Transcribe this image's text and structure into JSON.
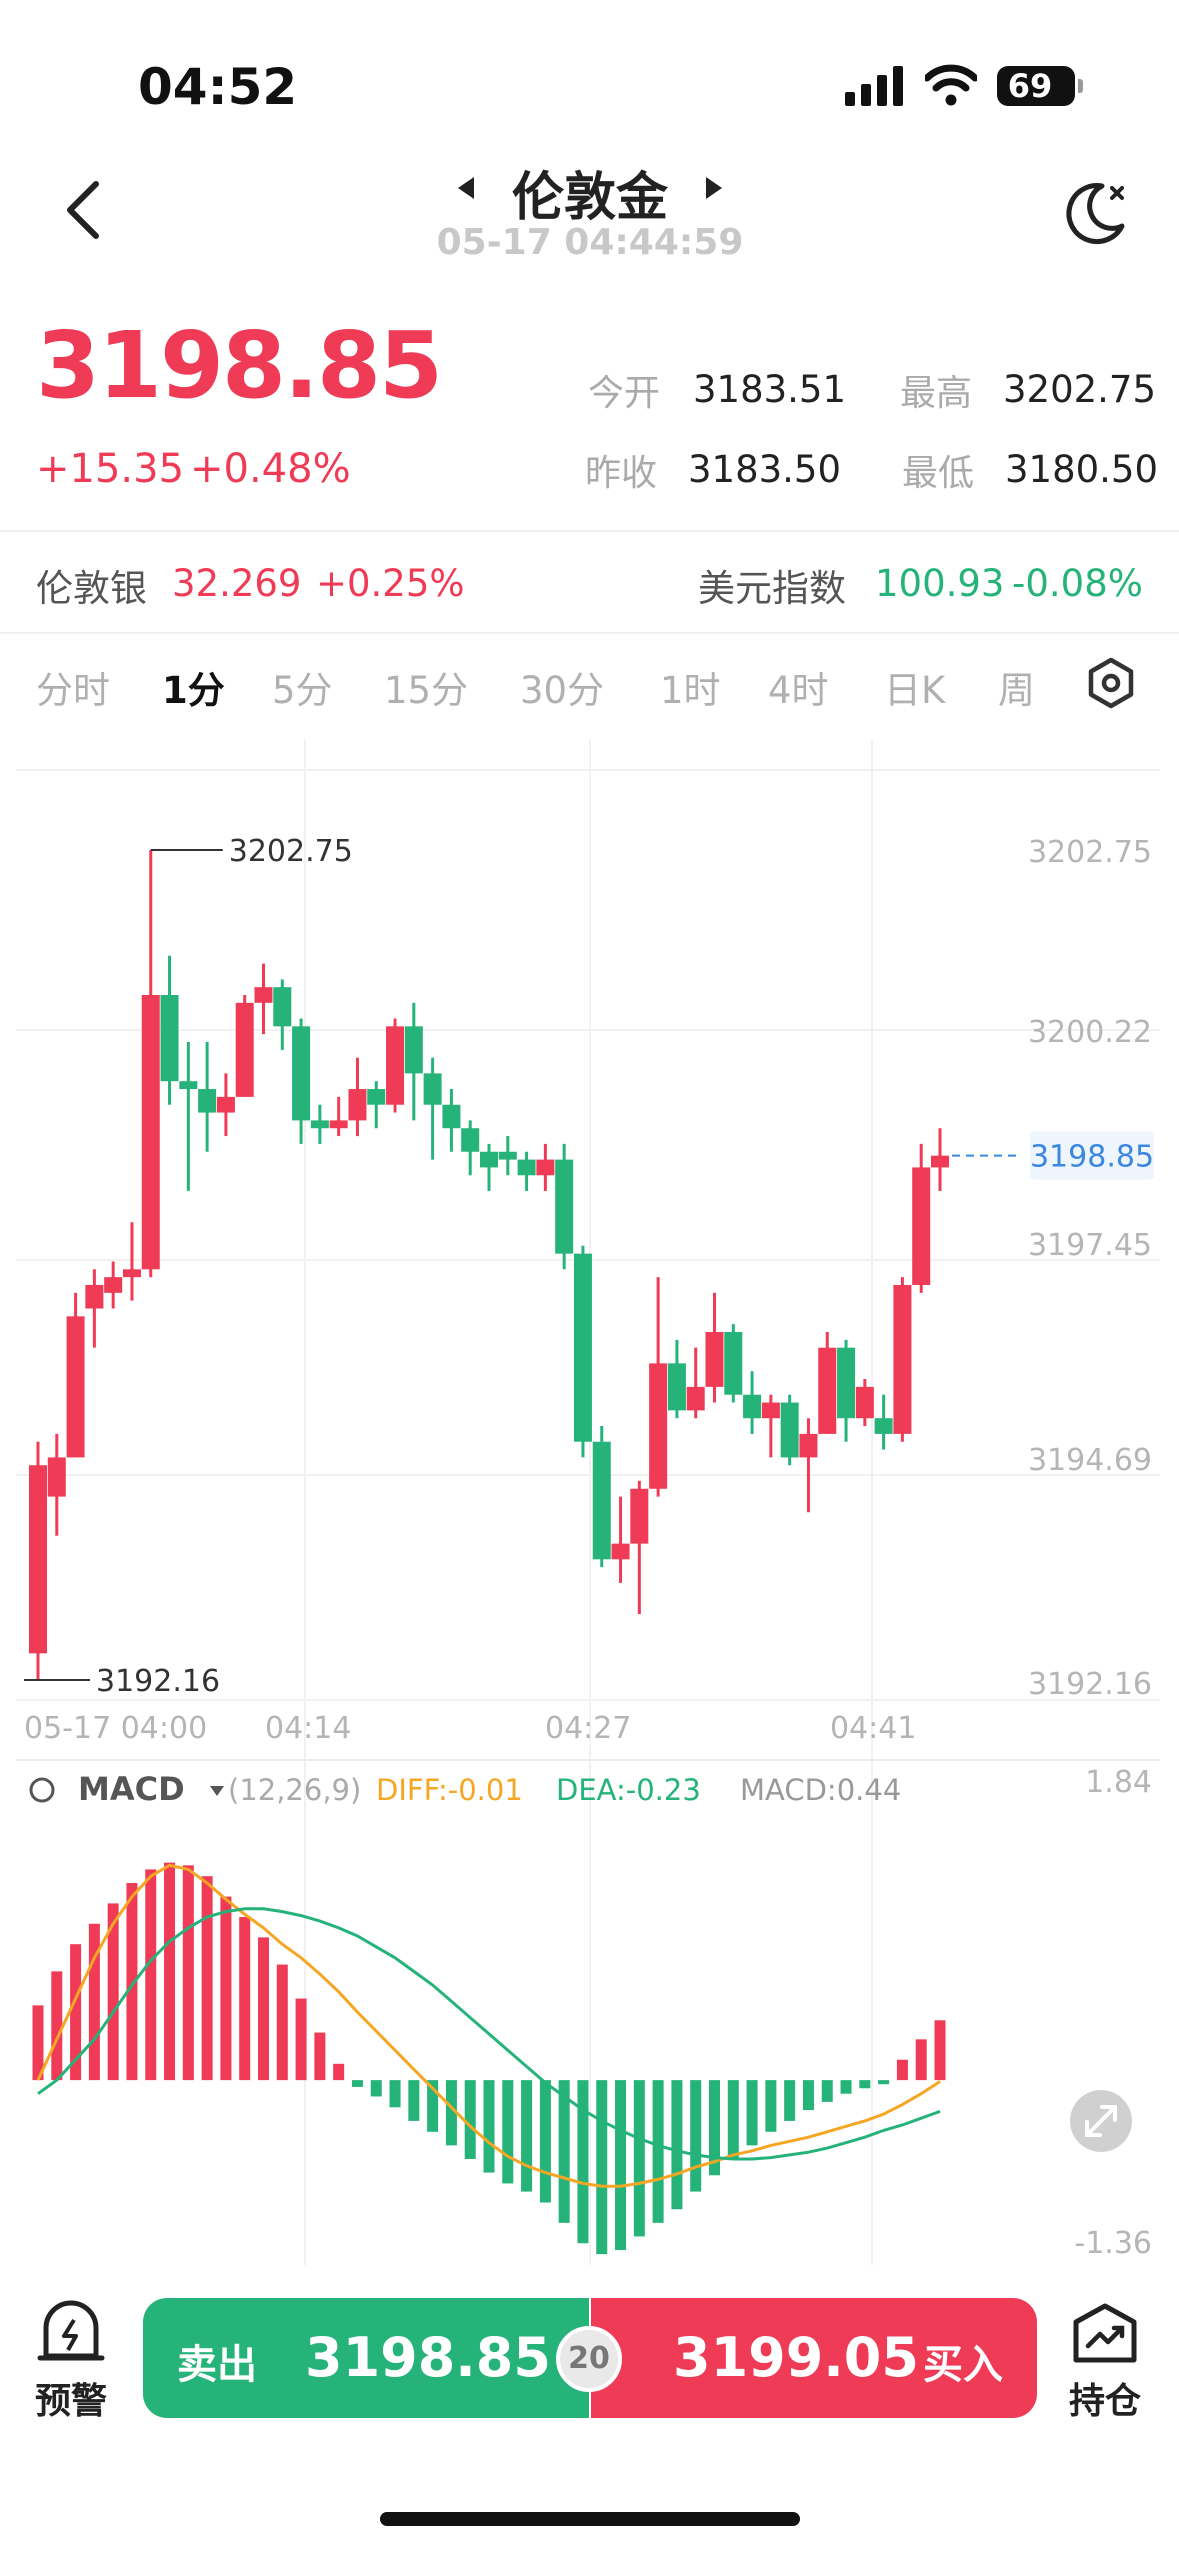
{
  "status_bar": {
    "time": "04:52",
    "battery": "69"
  },
  "header": {
    "title": "伦敦金",
    "timestamp": "05-17 04:44:59"
  },
  "quote": {
    "price": "3198.85",
    "change": "+15.35",
    "change_pct": "+0.48%",
    "open_label": "今开",
    "open": "3183.51",
    "high_label": "最高",
    "high": "3202.75",
    "prev_close_label": "昨收",
    "prev_close": "3183.50",
    "low_label": "最低",
    "low": "3180.50"
  },
  "related": [
    {
      "name": "伦敦银",
      "value": "32.269",
      "pct": "+0.25%"
    },
    {
      "name": "美元指数",
      "value": "100.93",
      "pct": "-0.08%"
    }
  ],
  "period_tabs": [
    "分时",
    "1分",
    "5分",
    "15分",
    "30分",
    "1时",
    "4时",
    "日K",
    "周"
  ],
  "active_tab": "1分",
  "colors": {
    "up": "#ef3b55",
    "down": "#25b37a",
    "diff": "#f5a623",
    "dea": "#25b37a",
    "price_line": "#3a86e0"
  },
  "chart_data": {
    "type": "candlestick",
    "x_labels": [
      "05-17 04:00",
      "04:14",
      "04:27",
      "04:41"
    ],
    "y_labels": [
      "3202.75",
      "3200.22",
      "3197.45",
      "3194.69",
      "3192.16"
    ],
    "ylim": [
      3192.16,
      3202.75
    ],
    "max_marker": "3202.75",
    "min_marker": "3192.16",
    "current_price": "3198.85",
    "candles": [
      [
        3192.5,
        3194.9,
        3192.16,
        3195.2
      ],
      [
        3194.5,
        3195.0,
        3194.0,
        3195.3
      ],
      [
        3195.0,
        3196.8,
        3195.0,
        3197.1
      ],
      [
        3196.9,
        3197.2,
        3196.4,
        3197.4
      ],
      [
        3197.1,
        3197.3,
        3196.9,
        3197.5
      ],
      [
        3197.3,
        3197.4,
        3197.0,
        3198.0
      ],
      [
        3197.4,
        3200.9,
        3197.3,
        3202.75
      ],
      [
        3200.9,
        3199.8,
        3199.5,
        3201.4
      ],
      [
        3199.8,
        3199.7,
        3198.4,
        3200.3
      ],
      [
        3199.7,
        3199.4,
        3198.9,
        3200.3
      ],
      [
        3199.4,
        3199.6,
        3199.1,
        3199.9
      ],
      [
        3199.6,
        3200.8,
        3199.6,
        3200.9
      ],
      [
        3200.8,
        3201.0,
        3200.4,
        3201.3
      ],
      [
        3201.0,
        3200.5,
        3200.2,
        3201.1
      ],
      [
        3200.5,
        3199.3,
        3199.0,
        3200.6
      ],
      [
        3199.3,
        3199.2,
        3199.0,
        3199.5
      ],
      [
        3199.2,
        3199.3,
        3199.1,
        3199.6
      ],
      [
        3199.3,
        3199.7,
        3199.1,
        3200.1
      ],
      [
        3199.7,
        3199.5,
        3199.2,
        3199.8
      ],
      [
        3199.5,
        3200.5,
        3199.4,
        3200.6
      ],
      [
        3200.5,
        3199.9,
        3199.3,
        3200.8
      ],
      [
        3199.9,
        3199.5,
        3198.8,
        3200.1
      ],
      [
        3199.5,
        3199.2,
        3198.9,
        3199.7
      ],
      [
        3199.2,
        3198.9,
        3198.6,
        3199.3
      ],
      [
        3198.9,
        3198.7,
        3198.4,
        3199.0
      ],
      [
        3198.9,
        3198.8,
        3198.6,
        3199.1
      ],
      [
        3198.8,
        3198.6,
        3198.4,
        3198.9
      ],
      [
        3198.6,
        3198.8,
        3198.4,
        3199.0
      ],
      [
        3198.8,
        3197.6,
        3197.4,
        3199.0
      ],
      [
        3197.6,
        3195.2,
        3195.0,
        3197.7
      ],
      [
        3195.2,
        3193.7,
        3193.6,
        3195.4
      ],
      [
        3193.7,
        3193.9,
        3193.4,
        3194.5
      ],
      [
        3193.9,
        3194.6,
        3193.0,
        3194.7
      ],
      [
        3194.6,
        3196.2,
        3194.5,
        3197.3
      ],
      [
        3196.2,
        3195.6,
        3195.5,
        3196.5
      ],
      [
        3195.6,
        3195.9,
        3195.5,
        3196.4
      ],
      [
        3195.9,
        3196.6,
        3195.7,
        3197.1
      ],
      [
        3196.6,
        3195.8,
        3195.7,
        3196.7
      ],
      [
        3195.8,
        3195.5,
        3195.3,
        3196.1
      ],
      [
        3195.5,
        3195.7,
        3195.0,
        3195.8
      ],
      [
        3195.7,
        3195.0,
        3194.9,
        3195.8
      ],
      [
        3195.0,
        3195.3,
        3194.3,
        3195.5
      ],
      [
        3195.3,
        3196.4,
        3195.3,
        3196.6
      ],
      [
        3196.4,
        3195.5,
        3195.2,
        3196.5
      ],
      [
        3195.5,
        3195.9,
        3195.4,
        3196.0
      ],
      [
        3195.5,
        3195.3,
        3195.1,
        3195.8
      ],
      [
        3195.3,
        3197.2,
        3195.2,
        3197.3
      ],
      [
        3197.2,
        3198.7,
        3197.1,
        3199.0
      ],
      [
        3198.7,
        3198.85,
        3198.4,
        3199.2
      ]
    ],
    "macd": {
      "label": "MACD",
      "params": "(12,26,9)",
      "diff_label": "DIFF:-0.01",
      "dea_label": "DEA:-0.23",
      "macd_label": "MACD:0.44",
      "ylim_labels": [
        "1.84",
        "-1.36"
      ],
      "ylim": [
        -1.36,
        1.84
      ],
      "hist": [
        0.55,
        0.8,
        1.0,
        1.15,
        1.3,
        1.45,
        1.55,
        1.6,
        1.58,
        1.5,
        1.35,
        1.2,
        1.05,
        0.85,
        0.6,
        0.35,
        0.12,
        -0.05,
        -0.12,
        -0.2,
        -0.3,
        -0.38,
        -0.48,
        -0.58,
        -0.68,
        -0.76,
        -0.82,
        -0.9,
        -1.05,
        -1.2,
        -1.28,
        -1.25,
        -1.15,
        -1.05,
        -0.95,
        -0.82,
        -0.7,
        -0.58,
        -0.48,
        -0.38,
        -0.3,
        -0.22,
        -0.16,
        -0.1,
        -0.06,
        -0.03,
        0.15,
        0.3,
        0.44
      ],
      "diff": [
        0.0,
        0.3,
        0.6,
        0.9,
        1.15,
        1.35,
        1.5,
        1.58,
        1.55,
        1.45,
        1.33,
        1.22,
        1.12,
        1.0,
        0.9,
        0.78,
        0.65,
        0.5,
        0.36,
        0.22,
        0.08,
        -0.06,
        -0.2,
        -0.34,
        -0.46,
        -0.56,
        -0.63,
        -0.68,
        -0.72,
        -0.76,
        -0.78,
        -0.78,
        -0.76,
        -0.73,
        -0.69,
        -0.64,
        -0.6,
        -0.55,
        -0.52,
        -0.48,
        -0.45,
        -0.42,
        -0.38,
        -0.34,
        -0.3,
        -0.25,
        -0.18,
        -0.1,
        -0.01
      ],
      "dea": [
        -0.1,
        0.0,
        0.15,
        0.3,
        0.5,
        0.7,
        0.88,
        1.02,
        1.12,
        1.2,
        1.24,
        1.26,
        1.26,
        1.24,
        1.21,
        1.17,
        1.12,
        1.06,
        0.98,
        0.9,
        0.8,
        0.7,
        0.58,
        0.46,
        0.34,
        0.22,
        0.1,
        -0.02,
        -0.12,
        -0.22,
        -0.3,
        -0.37,
        -0.43,
        -0.48,
        -0.52,
        -0.55,
        -0.57,
        -0.58,
        -0.58,
        -0.57,
        -0.55,
        -0.53,
        -0.5,
        -0.46,
        -0.42,
        -0.37,
        -0.33,
        -0.28,
        -0.23
      ]
    }
  },
  "bottom": {
    "alert_label": "预警",
    "sell_label": "卖出",
    "sell_price": "3198.85",
    "spread": "20",
    "buy_price": "3199.05",
    "buy_label": "买入",
    "position_label": "持仓"
  }
}
